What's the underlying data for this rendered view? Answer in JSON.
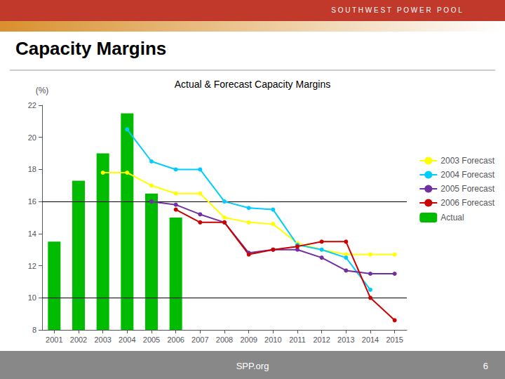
{
  "chart_data": {
    "type": "line",
    "title": "Actual & Forecast Capacity Margins",
    "ylabel": "(%)",
    "annotations": [
      "S O U T H W E S T   P O W E R   P O O L",
      "Capacity Margins",
      "SPP.org",
      "6"
    ],
    "xlim": [
      2000.5,
      2015.5
    ],
    "xticks": [
      2001,
      2002,
      2003,
      2004,
      2005,
      2006,
      2007,
      2008,
      2009,
      2010,
      2011,
      2012,
      2013,
      2014,
      2015
    ],
    "ylim": [
      8,
      22
    ],
    "yticks": [
      8,
      10,
      12,
      14,
      16,
      18,
      20,
      22
    ],
    "hlines": [
      10,
      16
    ],
    "grid": false,
    "legend": "right",
    "series": [
      {
        "name": "2003 Forecast",
        "type": "line",
        "marker": "circle",
        "color": "#FFFF00",
        "x": [
          2003,
          2004,
          2005,
          2006,
          2007,
          2008,
          2009,
          2010,
          2011,
          2012,
          2013,
          2014,
          2015
        ],
        "values": [
          17.8,
          17.8,
          17.0,
          16.5,
          16.5,
          15.0,
          14.7,
          14.6,
          13.4,
          13.0,
          12.7,
          12.7,
          12.7
        ]
      },
      {
        "name": "2004 Forecast",
        "type": "line",
        "marker": "circle",
        "color": "#00CCFF",
        "x": [
          2004,
          2005,
          2006,
          2007,
          2008,
          2009,
          2010,
          2011,
          2012,
          2013,
          2014
        ],
        "values": [
          20.5,
          18.5,
          18.0,
          18.0,
          16.0,
          15.6,
          15.5,
          13.3,
          13.0,
          12.5,
          10.5
        ]
      },
      {
        "name": "2005 Forecast",
        "type": "line",
        "marker": "circle",
        "color": "#7030A0",
        "x": [
          2005,
          2006,
          2007,
          2008,
          2009,
          2010,
          2011,
          2012,
          2013,
          2014,
          2015
        ],
        "values": [
          16.0,
          15.8,
          15.2,
          14.7,
          12.8,
          13.0,
          13.0,
          12.5,
          11.7,
          11.5,
          11.5
        ]
      },
      {
        "name": "2006 Forecast",
        "type": "line",
        "marker": "circle",
        "color": "#CC0000",
        "x": [
          2006,
          2007,
          2008,
          2009,
          2010,
          2011,
          2012,
          2013,
          2014,
          2015
        ],
        "values": [
          15.5,
          14.7,
          14.7,
          12.7,
          13.0,
          13.2,
          13.5,
          13.5,
          10.0,
          8.6
        ]
      },
      {
        "name": "Actual",
        "type": "bar",
        "color": "#00BB00",
        "x": [
          2001,
          2002,
          2003,
          2004,
          2005,
          2006
        ],
        "values": [
          13.5,
          17.3,
          19.0,
          21.5,
          16.5,
          15.0
        ]
      }
    ]
  }
}
